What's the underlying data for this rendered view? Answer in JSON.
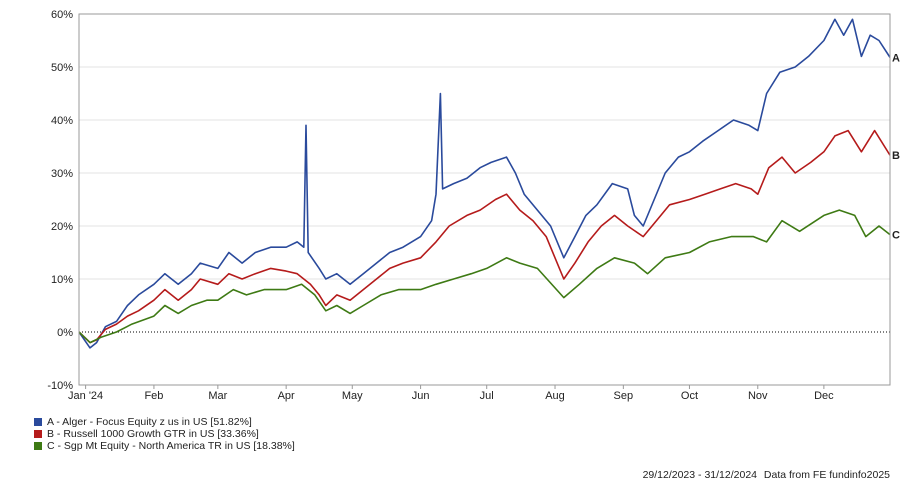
{
  "chart_data": {
    "type": "line",
    "ylim": [
      -10,
      60
    ],
    "y_ticks": [
      -10,
      0,
      10,
      20,
      30,
      40,
      50,
      60
    ],
    "y_tick_labels": [
      "-10%",
      "0%",
      "10%",
      "20%",
      "30%",
      "40%",
      "50%",
      "60%"
    ],
    "x_ticks": [
      {
        "label": "Jan '24",
        "x": "2024-01-01"
      },
      {
        "label": "Feb",
        "x": "2024-02-01"
      },
      {
        "label": "Mar",
        "x": "2024-03-01"
      },
      {
        "label": "Apr",
        "x": "2024-04-01"
      },
      {
        "label": "May",
        "x": "2024-05-01"
      },
      {
        "label": "Jun",
        "x": "2024-06-01"
      },
      {
        "label": "Jul",
        "x": "2024-07-01"
      },
      {
        "label": "Aug",
        "x": "2024-08-01"
      },
      {
        "label": "Sep",
        "x": "2024-09-01"
      },
      {
        "label": "Oct",
        "x": "2024-10-01"
      },
      {
        "label": "Nov",
        "x": "2024-11-01"
      },
      {
        "label": "Dec",
        "x": "2024-12-01"
      }
    ],
    "xlim": [
      "2023-12-29",
      "2024-12-31"
    ],
    "grid": "horizontal",
    "zero_line": "dotted",
    "series": [
      {
        "name": "A - Alger - Focus Equity z us in US [51.82%]",
        "end_label": "A",
        "color": "#2a4a9c",
        "points": [
          [
            "2023-12-29",
            0
          ],
          [
            "2024-01-03",
            -3
          ],
          [
            "2024-01-06",
            -2
          ],
          [
            "2024-01-10",
            1
          ],
          [
            "2024-01-15",
            2
          ],
          [
            "2024-01-20",
            5
          ],
          [
            "2024-01-25",
            7
          ],
          [
            "2024-02-01",
            9
          ],
          [
            "2024-02-06",
            11
          ],
          [
            "2024-02-12",
            9
          ],
          [
            "2024-02-18",
            11
          ],
          [
            "2024-02-22",
            13
          ],
          [
            "2024-03-01",
            12
          ],
          [
            "2024-03-06",
            15
          ],
          [
            "2024-03-12",
            13
          ],
          [
            "2024-03-18",
            15
          ],
          [
            "2024-03-25",
            16
          ],
          [
            "2024-04-01",
            16
          ],
          [
            "2024-04-06",
            17
          ],
          [
            "2024-04-09",
            16
          ],
          [
            "2024-04-10",
            39
          ],
          [
            "2024-04-11",
            15
          ],
          [
            "2024-04-16",
            12
          ],
          [
            "2024-04-19",
            10
          ],
          [
            "2024-04-24",
            11
          ],
          [
            "2024-04-30",
            9
          ],
          [
            "2024-05-06",
            11
          ],
          [
            "2024-05-12",
            13
          ],
          [
            "2024-05-18",
            15
          ],
          [
            "2024-05-24",
            16
          ],
          [
            "2024-06-01",
            18
          ],
          [
            "2024-06-06",
            21
          ],
          [
            "2024-06-08",
            26
          ],
          [
            "2024-06-10",
            45
          ],
          [
            "2024-06-11",
            27
          ],
          [
            "2024-06-16",
            28
          ],
          [
            "2024-06-22",
            29
          ],
          [
            "2024-06-28",
            31
          ],
          [
            "2024-07-03",
            32
          ],
          [
            "2024-07-10",
            33
          ],
          [
            "2024-07-14",
            30
          ],
          [
            "2024-07-18",
            26
          ],
          [
            "2024-07-24",
            23
          ],
          [
            "2024-07-30",
            20
          ],
          [
            "2024-08-05",
            14
          ],
          [
            "2024-08-10",
            18
          ],
          [
            "2024-08-15",
            22
          ],
          [
            "2024-08-20",
            24
          ],
          [
            "2024-08-27",
            28
          ],
          [
            "2024-09-03",
            27
          ],
          [
            "2024-09-06",
            22
          ],
          [
            "2024-09-10",
            20
          ],
          [
            "2024-09-15",
            25
          ],
          [
            "2024-09-20",
            30
          ],
          [
            "2024-09-26",
            33
          ],
          [
            "2024-10-01",
            34
          ],
          [
            "2024-10-07",
            36
          ],
          [
            "2024-10-14",
            38
          ],
          [
            "2024-10-21",
            40
          ],
          [
            "2024-10-28",
            39
          ],
          [
            "2024-11-01",
            38
          ],
          [
            "2024-11-05",
            45
          ],
          [
            "2024-11-11",
            49
          ],
          [
            "2024-11-18",
            50
          ],
          [
            "2024-11-24",
            52
          ],
          [
            "2024-12-01",
            55
          ],
          [
            "2024-12-06",
            59
          ],
          [
            "2024-12-10",
            56
          ],
          [
            "2024-12-14",
            59
          ],
          [
            "2024-12-18",
            52
          ],
          [
            "2024-12-22",
            56
          ],
          [
            "2024-12-26",
            55
          ],
          [
            "2024-12-31",
            51.82
          ]
        ]
      },
      {
        "name": "B - Russell 1000 Growth GTR in US [33.36%]",
        "end_label": "B",
        "color": "#b51b1b",
        "points": [
          [
            "2023-12-29",
            0
          ],
          [
            "2024-01-03",
            -2
          ],
          [
            "2024-01-06",
            -1.5
          ],
          [
            "2024-01-10",
            0.5
          ],
          [
            "2024-01-15",
            1.5
          ],
          [
            "2024-01-20",
            3
          ],
          [
            "2024-01-25",
            4
          ],
          [
            "2024-02-01",
            6
          ],
          [
            "2024-02-06",
            8
          ],
          [
            "2024-02-12",
            6
          ],
          [
            "2024-02-18",
            8
          ],
          [
            "2024-02-22",
            10
          ],
          [
            "2024-03-01",
            9
          ],
          [
            "2024-03-06",
            11
          ],
          [
            "2024-03-12",
            10
          ],
          [
            "2024-03-18",
            11
          ],
          [
            "2024-03-25",
            12
          ],
          [
            "2024-04-01",
            11.5
          ],
          [
            "2024-04-06",
            11
          ],
          [
            "2024-04-12",
            9
          ],
          [
            "2024-04-16",
            7
          ],
          [
            "2024-04-19",
            5
          ],
          [
            "2024-04-24",
            7
          ],
          [
            "2024-04-30",
            6
          ],
          [
            "2024-05-06",
            8
          ],
          [
            "2024-05-12",
            10
          ],
          [
            "2024-05-18",
            12
          ],
          [
            "2024-05-24",
            13
          ],
          [
            "2024-06-01",
            14
          ],
          [
            "2024-06-08",
            17
          ],
          [
            "2024-06-14",
            20
          ],
          [
            "2024-06-22",
            22
          ],
          [
            "2024-06-28",
            23
          ],
          [
            "2024-07-05",
            25
          ],
          [
            "2024-07-10",
            26
          ],
          [
            "2024-07-16",
            23
          ],
          [
            "2024-07-22",
            21
          ],
          [
            "2024-07-28",
            18
          ],
          [
            "2024-08-05",
            10
          ],
          [
            "2024-08-10",
            13
          ],
          [
            "2024-08-16",
            17
          ],
          [
            "2024-08-22",
            20
          ],
          [
            "2024-08-28",
            22
          ],
          [
            "2024-09-03",
            20
          ],
          [
            "2024-09-10",
            18
          ],
          [
            "2024-09-16",
            21
          ],
          [
            "2024-09-22",
            24
          ],
          [
            "2024-10-01",
            25
          ],
          [
            "2024-10-08",
            26
          ],
          [
            "2024-10-15",
            27
          ],
          [
            "2024-10-22",
            28
          ],
          [
            "2024-10-29",
            27
          ],
          [
            "2024-11-01",
            26
          ],
          [
            "2024-11-06",
            31
          ],
          [
            "2024-11-12",
            33
          ],
          [
            "2024-11-18",
            30
          ],
          [
            "2024-11-25",
            32
          ],
          [
            "2024-12-01",
            34
          ],
          [
            "2024-12-06",
            37
          ],
          [
            "2024-12-12",
            38
          ],
          [
            "2024-12-18",
            34
          ],
          [
            "2024-12-24",
            38
          ],
          [
            "2024-12-31",
            33.36
          ]
        ]
      },
      {
        "name": "C - Sgp Mt Equity - North America TR in US [18.38%]",
        "end_label": "C",
        "color": "#3e7a14",
        "points": [
          [
            "2023-12-29",
            0
          ],
          [
            "2024-01-03",
            -2
          ],
          [
            "2024-01-08",
            -1
          ],
          [
            "2024-01-15",
            0
          ],
          [
            "2024-01-22",
            1.5
          ],
          [
            "2024-02-01",
            3
          ],
          [
            "2024-02-06",
            5
          ],
          [
            "2024-02-12",
            3.5
          ],
          [
            "2024-02-18",
            5
          ],
          [
            "2024-02-25",
            6
          ],
          [
            "2024-03-01",
            6
          ],
          [
            "2024-03-08",
            8
          ],
          [
            "2024-03-14",
            7
          ],
          [
            "2024-03-22",
            8
          ],
          [
            "2024-04-01",
            8
          ],
          [
            "2024-04-08",
            9
          ],
          [
            "2024-04-14",
            7
          ],
          [
            "2024-04-19",
            4
          ],
          [
            "2024-04-24",
            5
          ],
          [
            "2024-04-30",
            3.5
          ],
          [
            "2024-05-06",
            5
          ],
          [
            "2024-05-14",
            7
          ],
          [
            "2024-05-22",
            8
          ],
          [
            "2024-06-01",
            8
          ],
          [
            "2024-06-08",
            9
          ],
          [
            "2024-06-16",
            10
          ],
          [
            "2024-06-24",
            11
          ],
          [
            "2024-07-01",
            12
          ],
          [
            "2024-07-10",
            14
          ],
          [
            "2024-07-16",
            13
          ],
          [
            "2024-07-24",
            12
          ],
          [
            "2024-08-05",
            6.5
          ],
          [
            "2024-08-12",
            9
          ],
          [
            "2024-08-20",
            12
          ],
          [
            "2024-08-28",
            14
          ],
          [
            "2024-09-06",
            13
          ],
          [
            "2024-09-12",
            11
          ],
          [
            "2024-09-20",
            14
          ],
          [
            "2024-10-01",
            15
          ],
          [
            "2024-10-10",
            17
          ],
          [
            "2024-10-20",
            18
          ],
          [
            "2024-10-30",
            18
          ],
          [
            "2024-11-05",
            17
          ],
          [
            "2024-11-12",
            21
          ],
          [
            "2024-11-20",
            19
          ],
          [
            "2024-12-01",
            22
          ],
          [
            "2024-12-08",
            23
          ],
          [
            "2024-12-15",
            22
          ],
          [
            "2024-12-20",
            18
          ],
          [
            "2024-12-26",
            20
          ],
          [
            "2024-12-31",
            18.38
          ]
        ]
      }
    ]
  },
  "legend": {
    "items": [
      {
        "label": "A - Alger - Focus Equity z us in US [51.82%]",
        "color": "#2a4a9c"
      },
      {
        "label": "B - Russell 1000 Growth GTR in US [33.36%]",
        "color": "#b51b1b"
      },
      {
        "label": "C - Sgp Mt Equity - North America TR in US [18.38%]",
        "color": "#3e7a14"
      }
    ]
  },
  "footer": {
    "date_range": "29/12/2023 - 31/12/2024",
    "source": "Data from FE fundinfo2025"
  }
}
